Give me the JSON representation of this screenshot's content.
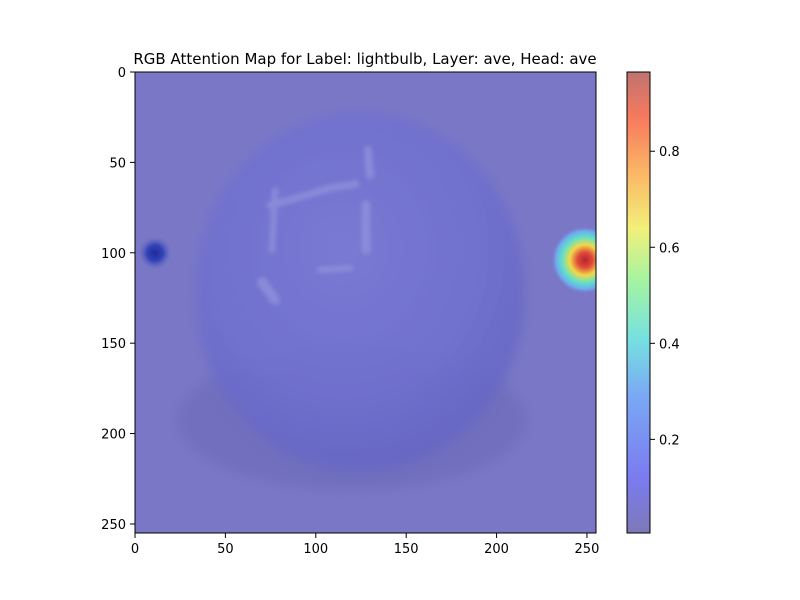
{
  "chart_data": {
    "type": "heatmap",
    "title": "RGB Attention Map for Label: lightbulb, Layer: ave, Head: ave",
    "xlabel": "",
    "ylabel": "",
    "xlim": [
      0,
      255
    ],
    "ylim": [
      255,
      0
    ],
    "x_ticks": [
      0,
      50,
      100,
      150,
      200,
      250
    ],
    "y_ticks": [
      0,
      50,
      100,
      150,
      200,
      250
    ],
    "x_tick_labels": [
      "0",
      "50",
      "100",
      "150",
      "200",
      "250"
    ],
    "y_tick_labels": [
      "0",
      "50",
      "100",
      "150",
      "200",
      "250"
    ],
    "grid": false,
    "colormap": "jet",
    "overlay_alpha": 0.5,
    "background_image": "grey lightbulb photo",
    "colorbar": {
      "range": [
        0.005,
        0.965
      ],
      "ticks": [
        0.2,
        0.4,
        0.6,
        0.8
      ],
      "tick_labels": [
        "0.2",
        "0.4",
        "0.6",
        "0.8"
      ]
    },
    "hotspots": [
      {
        "name": "left-edge-spot",
        "x": 11,
        "y": 100,
        "value": 0.0,
        "radius": 8
      },
      {
        "name": "right-edge-spot",
        "x": 249,
        "y": 104,
        "value": 0.96,
        "radius": 16
      }
    ],
    "colors": {
      "base_tint": "#7a78c6",
      "bulb_tint": "#6d6dcc",
      "hot": "#c8302a",
      "cold": "#2a2aa8"
    }
  }
}
